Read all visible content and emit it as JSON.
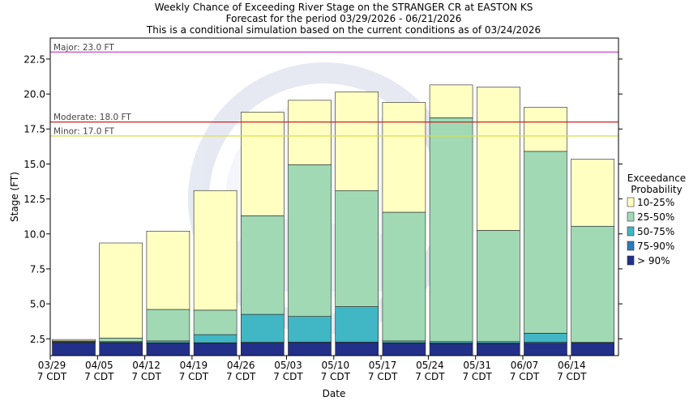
{
  "chart_data": {
    "type": "bar",
    "stacked": true,
    "title": [
      "Weekly Chance of Exceeding River Stage on the STRANGER CR at EASTON KS",
      "Forecast for the period 03/29/2026 - 06/21/2026",
      "This is a conditional simulation based on the current conditions as of 03/24/2026"
    ],
    "xlabel": "Date",
    "ylabel": "Stage (FT)",
    "ylim": [
      1.3,
      24.0
    ],
    "yticks": [
      2.5,
      5.0,
      7.5,
      10.0,
      12.5,
      15.0,
      17.5,
      20.0,
      22.5
    ],
    "ytick_labels": [
      "2.5",
      "5.0",
      "7.5",
      "10.0",
      "12.5",
      "15.0",
      "17.5",
      "20.0",
      "22.5"
    ],
    "xticks": [
      {
        "top": "03/29",
        "bottom": "7 CDT"
      },
      {
        "top": "04/05",
        "bottom": "7 CDT"
      },
      {
        "top": "04/12",
        "bottom": "7 CDT"
      },
      {
        "top": "04/19",
        "bottom": "7 CDT"
      },
      {
        "top": "04/26",
        "bottom": "7 CDT"
      },
      {
        "top": "05/03",
        "bottom": "7 CDT"
      },
      {
        "top": "05/10",
        "bottom": "7 CDT"
      },
      {
        "top": "05/17",
        "bottom": "7 CDT"
      },
      {
        "top": "05/24",
        "bottom": "7 CDT"
      },
      {
        "top": "05/31",
        "bottom": "7 CDT"
      },
      {
        "top": "06/07",
        "bottom": "7 CDT"
      },
      {
        "top": "06/14",
        "bottom": "7 CDT"
      }
    ],
    "weeks": 12,
    "thresholds": [
      {
        "label": "Major: 23.0 FT",
        "value": 23.0,
        "color": "#cc44cc"
      },
      {
        "label": "Moderate: 18.0 FT",
        "value": 18.0,
        "color": "#cc2222"
      },
      {
        "label": "Minor: 17.0 FT",
        "value": 17.0,
        "color": "#dddd44"
      }
    ],
    "legend": {
      "title": [
        "Exceedance",
        "Probability"
      ],
      "position": "right"
    },
    "series": [
      {
        "name": "> 90%",
        "color": "#22308a",
        "top": [
          2.22,
          2.2,
          2.18,
          2.18,
          2.2,
          2.22,
          2.22,
          2.18,
          2.15,
          2.15,
          2.18,
          2.2
        ]
      },
      {
        "name": "75-90%",
        "color": "#2c7ab8",
        "top": [
          2.26,
          2.25,
          2.22,
          2.22,
          2.25,
          2.27,
          2.27,
          2.22,
          2.2,
          2.2,
          2.25,
          2.25
        ]
      },
      {
        "name": "50-75%",
        "color": "#41b6c4",
        "top": [
          2.3,
          2.3,
          2.35,
          2.8,
          4.25,
          4.1,
          4.8,
          2.35,
          2.3,
          2.3,
          2.9,
          2.25
        ]
      },
      {
        "name": "25-50%",
        "color": "#a1d9b4",
        "top": [
          2.35,
          2.55,
          4.6,
          4.55,
          11.3,
          14.95,
          13.1,
          11.55,
          18.3,
          10.25,
          15.9,
          10.55
        ]
      },
      {
        "name": "10-25%",
        "color": "#ffffc2",
        "top": [
          2.45,
          9.35,
          10.2,
          13.1,
          18.7,
          19.55,
          20.15,
          19.4,
          20.65,
          20.5,
          19.05,
          15.35
        ]
      }
    ]
  }
}
